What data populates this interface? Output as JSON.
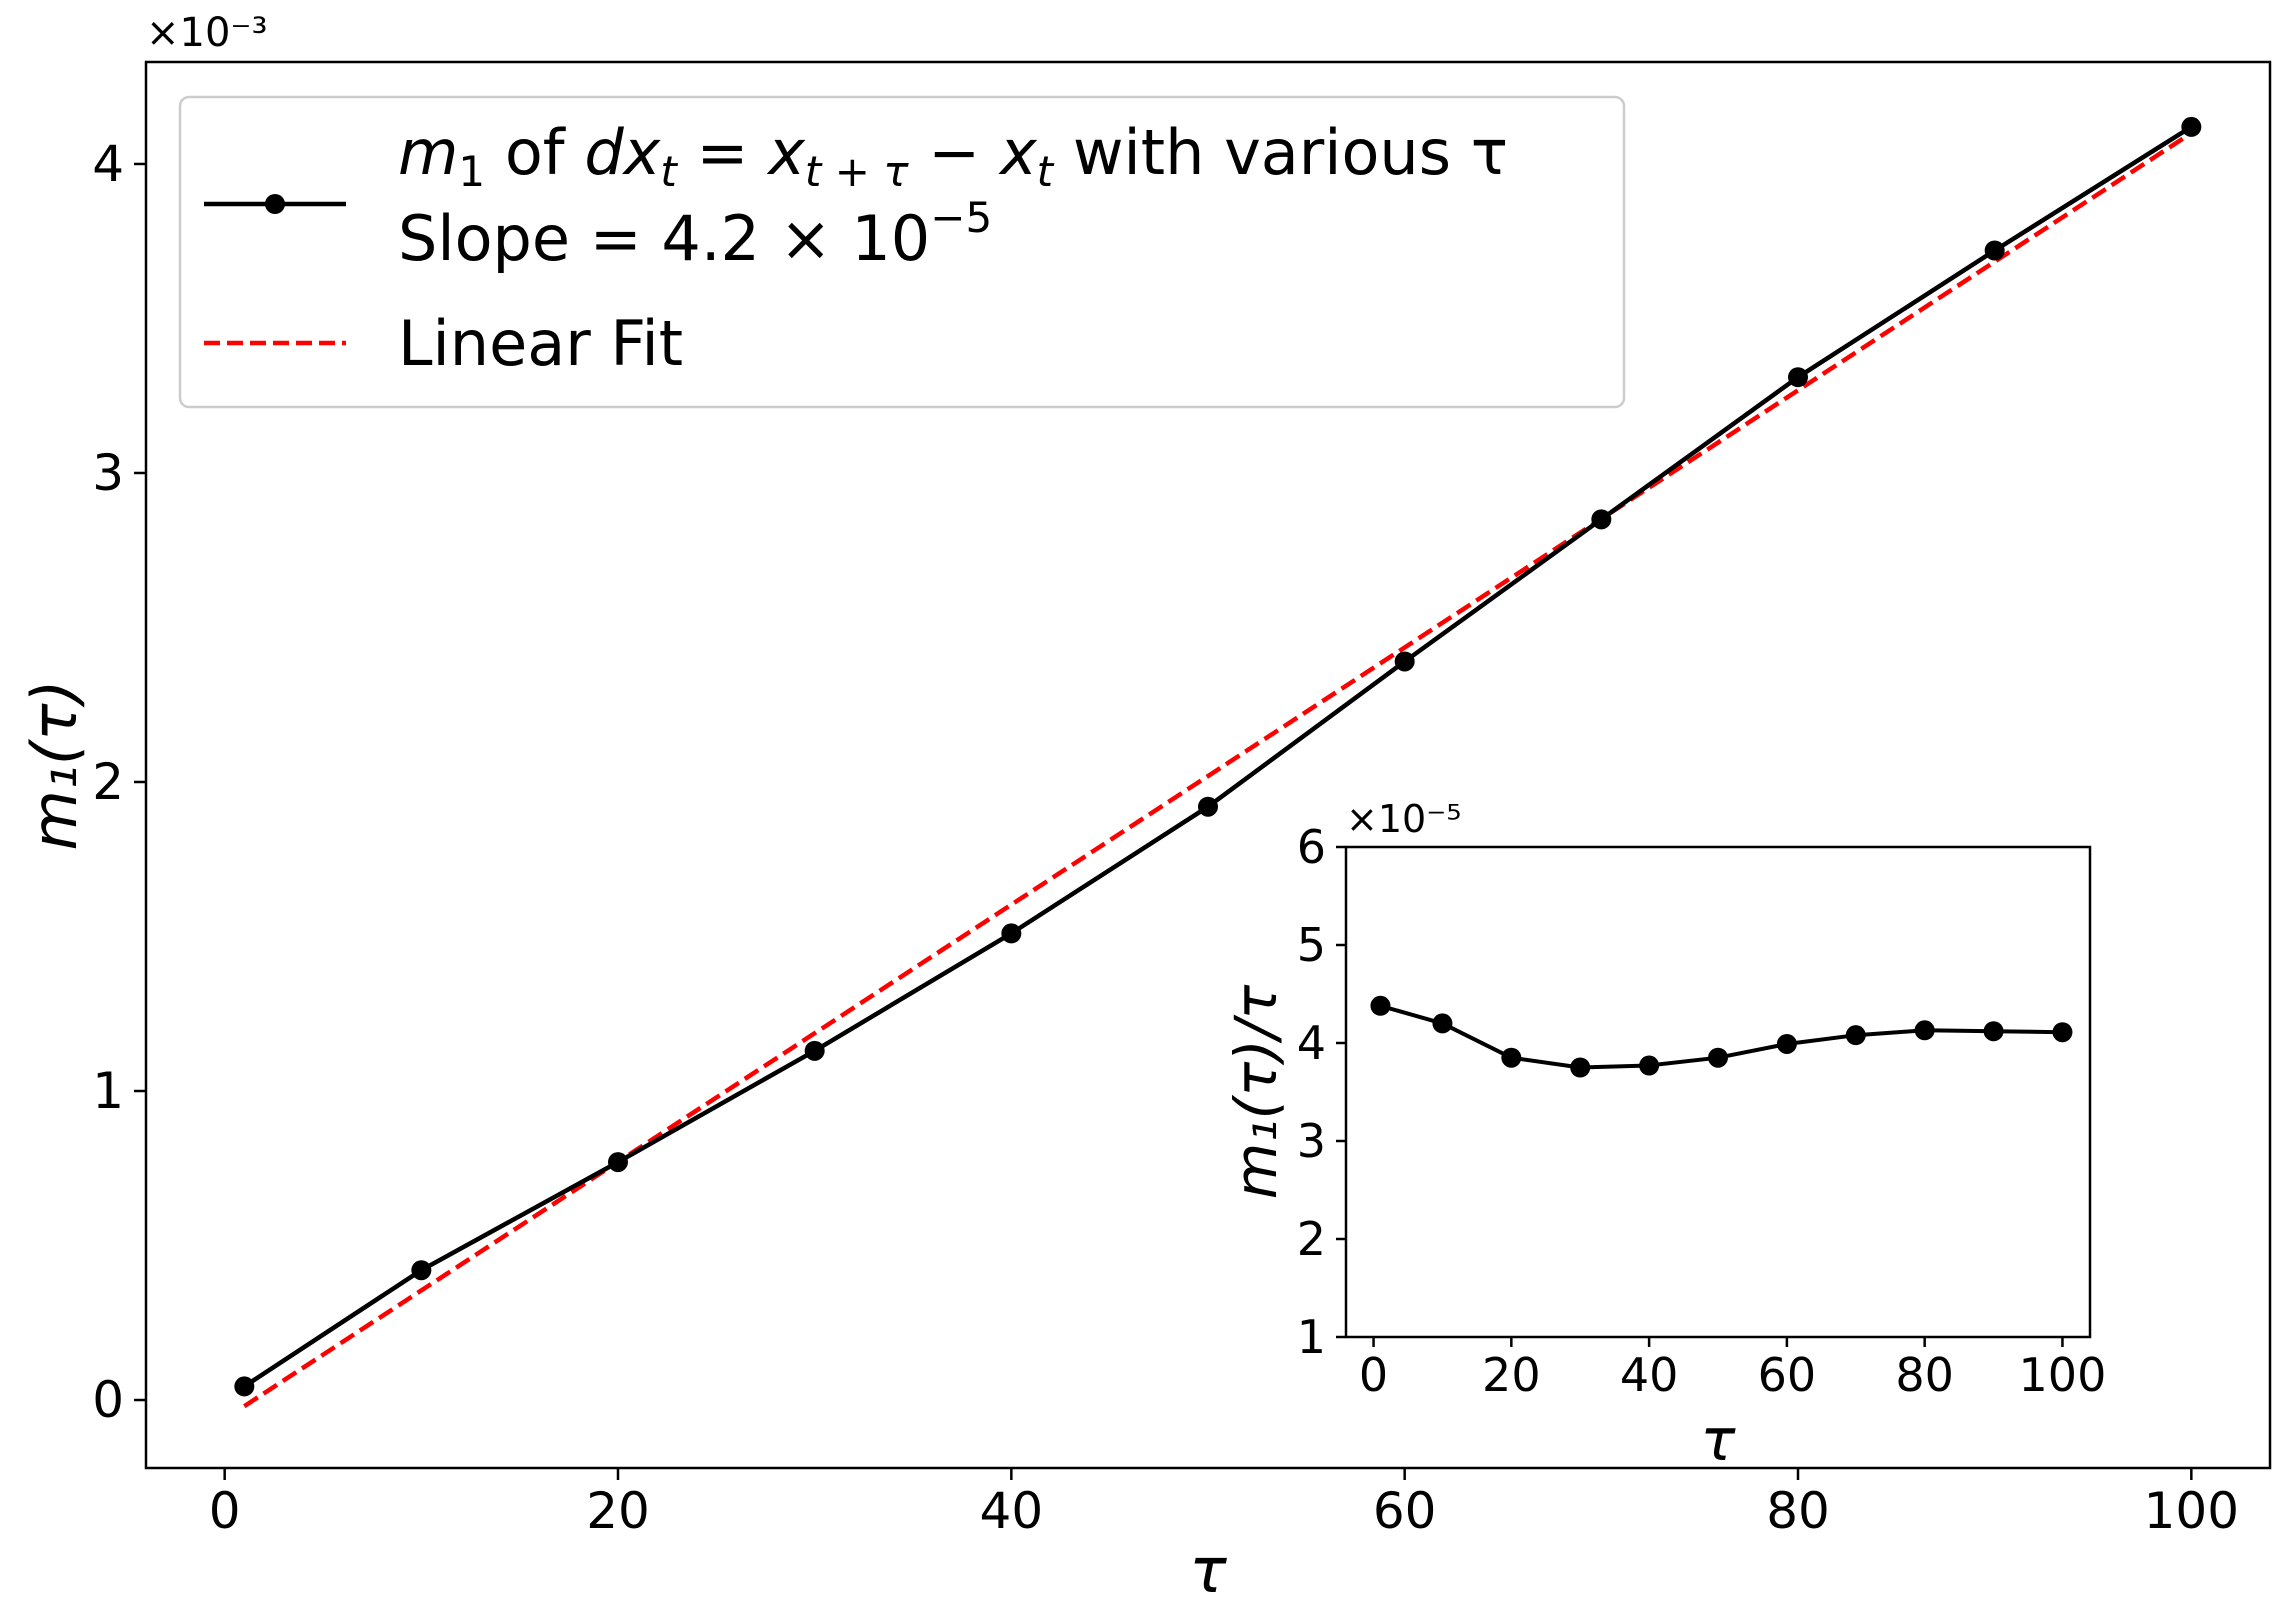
{
  "chart_data": [
    {
      "type": "line",
      "xlabel": "τ",
      "ylabel": "m₁(τ)",
      "xlim": [
        -4,
        104
      ],
      "ylim": [
        -0.00022,
        0.00433
      ],
      "x_ticks": [
        0,
        20,
        40,
        60,
        80,
        100
      ],
      "x_tick_labels": [
        "0",
        "20",
        "40",
        "60",
        "80",
        "100"
      ],
      "y_ticks": [
        0,
        0.001,
        0.002,
        0.003,
        0.004
      ],
      "y_tick_labels": [
        "0",
        "1",
        "2",
        "3",
        "4"
      ],
      "y_multiplier": "×10⁻³",
      "grid": false,
      "legend_position": "top-left",
      "series": [
        {
          "name_parts": {
            "m": "m",
            "sub1": "1",
            "of": " of ",
            "dx": "dx",
            "sub_t": "t",
            "eq": " = ",
            "x1": "x",
            "sub_ttau": "t + τ",
            "minus": " − ",
            "x2": "x",
            "sub_t2": "t",
            "rest": " with various τ",
            "line2": "Slope = 4.2 × 10",
            "sup": "−5"
          },
          "color": "#000000",
          "marker": "circle",
          "x": [
            1,
            10,
            20,
            30,
            40,
            50,
            60,
            70,
            80,
            90,
            100
          ],
          "y": [
            4.4e-05,
            0.00042,
            0.00077,
            0.00113,
            0.00151,
            0.00192,
            0.00239,
            0.00285,
            0.00331,
            0.00372,
            0.00412
          ]
        },
        {
          "name": "Linear Fit",
          "color": "#ff0000",
          "style": "dashed",
          "x": [
            1,
            100
          ],
          "y": [
            -2e-05,
            0.0041
          ]
        }
      ]
    },
    {
      "type": "line",
      "inset": true,
      "xlabel": "τ",
      "ylabel": "m₁(τ)/τ",
      "xlim": [
        -4,
        104
      ],
      "ylim": [
        1e-05,
        6e-05
      ],
      "x_ticks": [
        0,
        20,
        40,
        60,
        80,
        100
      ],
      "x_tick_labels": [
        "0",
        "20",
        "40",
        "60",
        "80",
        "100"
      ],
      "y_ticks": [
        1e-05,
        2e-05,
        3e-05,
        4e-05,
        5e-05,
        6e-05
      ],
      "y_tick_labels": [
        "1",
        "2",
        "3",
        "4",
        "5",
        "6"
      ],
      "y_multiplier": "×10⁻⁵",
      "grid": false,
      "series": [
        {
          "color": "#000000",
          "marker": "circle",
          "x": [
            1,
            10,
            20,
            30,
            40,
            50,
            60,
            70,
            80,
            90,
            100
          ],
          "y": [
            4.38e-05,
            4.2e-05,
            3.85e-05,
            3.75e-05,
            3.77e-05,
            3.85e-05,
            3.99e-05,
            4.08e-05,
            4.13e-05,
            4.12e-05,
            4.11e-05
          ]
        }
      ]
    }
  ]
}
